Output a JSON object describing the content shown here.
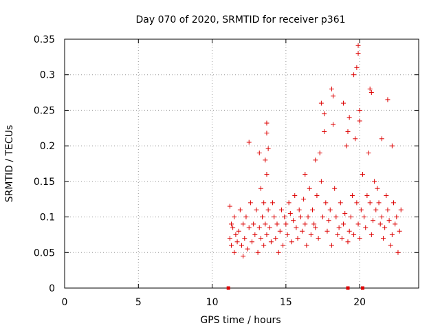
{
  "chart_data": {
    "type": "scatter",
    "title": "Day 070 of 2020, SRMTID for receiver p361",
    "xlabel": "GPS time / hours",
    "ylabel": "SRMTID / TECUs",
    "xlim": [
      0,
      24
    ],
    "ylim": [
      0,
      0.35
    ],
    "xticks": [
      0,
      5,
      10,
      15,
      20
    ],
    "xtick_labels": [
      "0",
      "5",
      "10",
      "15",
      "20"
    ],
    "yticks": [
      0,
      0.05,
      0.1,
      0.15,
      0.2,
      0.25,
      0.3,
      0.35
    ],
    "ytick_labels": [
      "0",
      "0.05",
      "0.1",
      "0.15",
      "0.2",
      "0.25",
      "0.3",
      "0.35"
    ],
    "grid": true,
    "marker": "+",
    "color": "#dd0000",
    "zero_markers": {
      "marker": "square",
      "x": [
        11.1,
        19.2,
        20.2
      ],
      "y": [
        0,
        0,
        0
      ]
    },
    "series": [
      {
        "name": "SRMTID",
        "x": [
          11.2,
          11.2,
          11.3,
          11.3,
          11.4,
          11.5,
          11.5,
          11.6,
          11.7,
          11.8,
          11.9,
          12.0,
          12.1,
          12.1,
          12.2,
          12.3,
          12.4,
          12.5,
          12.6,
          12.7,
          12.8,
          12.9,
          13.0,
          13.1,
          13.2,
          13.3,
          13.3,
          13.4,
          13.5,
          13.5,
          13.6,
          13.6,
          13.7,
          13.7,
          13.8,
          13.9,
          14.0,
          14.1,
          14.2,
          14.3,
          14.4,
          14.5,
          14.6,
          14.7,
          14.8,
          14.9,
          15.0,
          15.1,
          15.2,
          15.3,
          15.4,
          15.5,
          15.6,
          15.7,
          15.8,
          15.9,
          16.0,
          16.1,
          16.2,
          16.3,
          16.4,
          16.5,
          16.6,
          16.7,
          16.8,
          16.9,
          17.0,
          17.1,
          17.2,
          17.3,
          17.4,
          17.5,
          17.6,
          17.7,
          17.8,
          17.9,
          18.0,
          18.1,
          18.2,
          18.3,
          18.4,
          18.5,
          18.6,
          18.7,
          18.8,
          18.9,
          19.0,
          19.1,
          19.2,
          19.3,
          19.4,
          19.5,
          19.6,
          19.7,
          19.8,
          19.9,
          20.0,
          20.1,
          20.2,
          20.3,
          20.4,
          20.5,
          20.6,
          20.7,
          20.8,
          20.9,
          21.0,
          21.1,
          21.2,
          21.3,
          21.4,
          21.5,
          21.6,
          21.7,
          21.8,
          21.9,
          22.0,
          22.1,
          22.2,
          22.3,
          22.4,
          22.5,
          22.6,
          22.7,
          22.8,
          13.7,
          13.7,
          13.8,
          17.4,
          17.6,
          18.1,
          18.2,
          19.3,
          19.6,
          19.8,
          19.9,
          19.9,
          20.0,
          20.0,
          20.7,
          20.8,
          21.9,
          12.5,
          13.2,
          16.3,
          17.0,
          18.9,
          19.2,
          21.5,
          22.2
        ],
        "y": [
          0.115,
          0.07,
          0.09,
          0.06,
          0.085,
          0.05,
          0.1,
          0.075,
          0.065,
          0.08,
          0.11,
          0.06,
          0.09,
          0.045,
          0.07,
          0.1,
          0.055,
          0.085,
          0.12,
          0.065,
          0.09,
          0.075,
          0.11,
          0.05,
          0.085,
          0.14,
          0.07,
          0.1,
          0.06,
          0.12,
          0.18,
          0.09,
          0.16,
          0.075,
          0.11,
          0.085,
          0.065,
          0.12,
          0.1,
          0.07,
          0.09,
          0.05,
          0.08,
          0.11,
          0.06,
          0.1,
          0.09,
          0.075,
          0.12,
          0.105,
          0.065,
          0.095,
          0.13,
          0.085,
          0.07,
          0.11,
          0.1,
          0.08,
          0.125,
          0.09,
          0.06,
          0.1,
          0.14,
          0.075,
          0.11,
          0.09,
          0.085,
          0.13,
          0.07,
          0.19,
          0.15,
          0.1,
          0.22,
          0.12,
          0.08,
          0.095,
          0.11,
          0.06,
          0.23,
          0.14,
          0.1,
          0.075,
          0.085,
          0.12,
          0.07,
          0.09,
          0.105,
          0.2,
          0.065,
          0.08,
          0.1,
          0.13,
          0.075,
          0.21,
          0.12,
          0.09,
          0.07,
          0.11,
          0.16,
          0.1,
          0.085,
          0.13,
          0.19,
          0.12,
          0.075,
          0.095,
          0.15,
          0.11,
          0.14,
          0.12,
          0.09,
          0.1,
          0.07,
          0.085,
          0.13,
          0.11,
          0.095,
          0.06,
          0.075,
          0.12,
          0.09,
          0.1,
          0.05,
          0.08,
          0.11,
          0.232,
          0.218,
          0.196,
          0.26,
          0.245,
          0.28,
          0.27,
          0.24,
          0.3,
          0.31,
          0.33,
          0.341,
          0.25,
          0.235,
          0.28,
          0.275,
          0.265,
          0.205,
          0.19,
          0.16,
          0.18,
          0.26,
          0.22,
          0.21,
          0.2
        ]
      }
    ]
  }
}
